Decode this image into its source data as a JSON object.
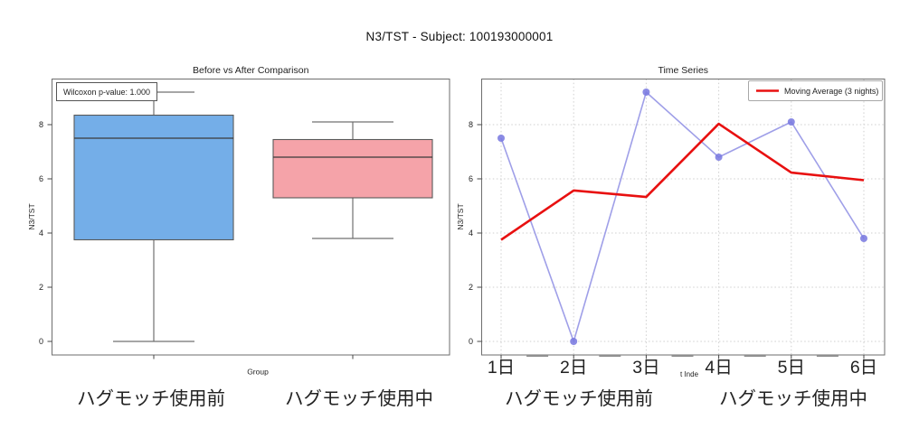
{
  "header": {
    "title": "N3/TST - Subject: 100193000001"
  },
  "colors": {
    "box_before_fill": "#74aee8",
    "box_after_fill": "#f5a3a9",
    "nightly_line": "#9f9fe8",
    "nightly_marker": "#7b7be0",
    "moving_average": "#e81010",
    "grid": "#cfcfcf",
    "spine": "#6e6e6e"
  },
  "chart_data": [
    {
      "type": "box",
      "title": "Before vs After Comparison",
      "xlabel": "Group",
      "ylabel": "N3/TST",
      "annotation": "Wilcoxon p-value: 1.000",
      "yticks": [
        0,
        2,
        4,
        6,
        8
      ],
      "ylim": [
        -0.5,
        9.7
      ],
      "grid": false,
      "categories": [
        "ハグモッチ使用前",
        "ハグモッチ使用中"
      ],
      "boxes": [
        {
          "label": "ハグモッチ使用前",
          "values": [
            7.5,
            0.0,
            9.2
          ],
          "whisker_low": 0.0,
          "q1": 3.75,
          "median": 7.5,
          "q3": 8.35,
          "whisker_high": 9.2,
          "fill": "#74aee8"
        },
        {
          "label": "ハグモッチ使用中",
          "values": [
            6.8,
            8.1,
            3.8
          ],
          "whisker_low": 3.8,
          "q1": 5.3,
          "median": 6.8,
          "q3": 7.45,
          "whisker_high": 8.1,
          "fill": "#f5a3a9"
        }
      ]
    },
    {
      "type": "line",
      "title": "Time Series",
      "ylabel": "N3/TST",
      "xlabel_visible_fragment": "t Inde",
      "x": [
        1,
        2,
        3,
        4,
        5,
        6
      ],
      "x_tick_labels": [
        "1日",
        "2日",
        "3日",
        "4日",
        "5日",
        "6日"
      ],
      "group_labels": [
        "ハグモッチ使用前",
        "ハグモッチ使用中"
      ],
      "yticks": [
        0,
        2,
        4,
        6,
        8
      ],
      "ylim": [
        -0.5,
        9.7
      ],
      "grid": "dotted",
      "series": [
        {
          "name": "N3/TST",
          "values": [
            7.5,
            0.0,
            9.2,
            6.8,
            8.1,
            3.8
          ],
          "color": "#9f9fe8",
          "marker_color": "#7b7be0",
          "markers": true,
          "in_legend": false
        },
        {
          "name": "Moving Average (3 nights)",
          "values": [
            3.75,
            5.57,
            5.33,
            8.03,
            6.23,
            5.95
          ],
          "color": "#e81010",
          "markers": false,
          "in_legend": true
        }
      ],
      "legend": {
        "label": "Moving Average (3 nights)",
        "position": "upper right"
      }
    }
  ]
}
